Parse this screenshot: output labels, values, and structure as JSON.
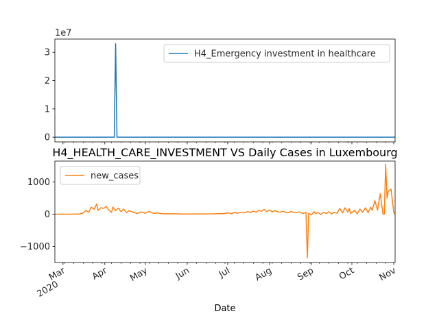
{
  "chart_data": [
    {
      "type": "line",
      "title": "",
      "xlabel": "",
      "ylabel": "",
      "offset_text": "1e7",
      "ylim": [
        -1650000,
        34650000
      ],
      "yticks": [
        {
          "value": 0,
          "label": "0"
        },
        {
          "value": 10000000,
          "label": "1"
        },
        {
          "value": 20000000,
          "label": "2"
        },
        {
          "value": 30000000,
          "label": "3"
        }
      ],
      "legend": {
        "placement": "upper right",
        "entries": [
          "H4_Emergency investment in healthcare"
        ]
      },
      "series": [
        {
          "name": "H4_Emergency investment in healthcare",
          "color": "#1f77b4",
          "points": [
            [
              "2020-02-24",
              0
            ],
            [
              "2020-04-08",
              0
            ],
            [
              "2020-04-09",
              33000000
            ],
            [
              "2020-04-10",
              0
            ],
            [
              "2020-11-02",
              0
            ]
          ]
        }
      ]
    },
    {
      "type": "line",
      "title": "H4_HEALTH_CARE_INVESTMENT VS Daily Cases in Luxembourg",
      "xlabel": "Date",
      "ylabel": "",
      "ylim": [
        -1500,
        1650
      ],
      "yticks": [
        {
          "value": -1000,
          "label": "−1000"
        },
        {
          "value": 0,
          "label": "0"
        },
        {
          "value": 1000,
          "label": "1000"
        }
      ],
      "xlim": [
        "2020-02-24",
        "2020-11-02"
      ],
      "xticks": [
        {
          "date": "2020-03-01",
          "label": "Mar",
          "sublabel": "2020"
        },
        {
          "date": "2020-04-01",
          "label": "Apr"
        },
        {
          "date": "2020-05-01",
          "label": "May"
        },
        {
          "date": "2020-06-01",
          "label": "Jun"
        },
        {
          "date": "2020-07-01",
          "label": "Jul"
        },
        {
          "date": "2020-08-01",
          "label": "Aug"
        },
        {
          "date": "2020-09-01",
          "label": "Sep"
        },
        {
          "date": "2020-10-01",
          "label": "Oct"
        },
        {
          "date": "2020-11-01",
          "label": "Nov"
        }
      ],
      "legend": {
        "placement": "upper left",
        "entries": [
          "new_cases"
        ]
      },
      "series": [
        {
          "name": "new_cases",
          "color": "#ff7f0e",
          "points": [
            [
              "2020-02-24",
              0
            ],
            [
              "2020-03-05",
              0
            ],
            [
              "2020-03-13",
              5
            ],
            [
              "2020-03-16",
              40
            ],
            [
              "2020-03-18",
              120
            ],
            [
              "2020-03-20",
              60
            ],
            [
              "2020-03-22",
              220
            ],
            [
              "2020-03-24",
              150
            ],
            [
              "2020-03-26",
              320
            ],
            [
              "2020-03-27",
              120
            ],
            [
              "2020-03-29",
              200
            ],
            [
              "2020-03-31",
              180
            ],
            [
              "2020-04-02",
              240
            ],
            [
              "2020-04-04",
              130
            ],
            [
              "2020-04-06",
              60
            ],
            [
              "2020-04-07",
              220
            ],
            [
              "2020-04-09",
              110
            ],
            [
              "2020-04-11",
              190
            ],
            [
              "2020-04-13",
              80
            ],
            [
              "2020-04-15",
              160
            ],
            [
              "2020-04-17",
              50
            ],
            [
              "2020-04-19",
              110
            ],
            [
              "2020-04-22",
              60
            ],
            [
              "2020-04-25",
              20
            ],
            [
              "2020-04-28",
              70
            ],
            [
              "2020-05-01",
              30
            ],
            [
              "2020-05-04",
              90
            ],
            [
              "2020-05-07",
              25
            ],
            [
              "2020-05-10",
              40
            ],
            [
              "2020-05-14",
              10
            ],
            [
              "2020-05-20",
              15
            ],
            [
              "2020-05-30",
              5
            ],
            [
              "2020-06-10",
              8
            ],
            [
              "2020-06-20",
              10
            ],
            [
              "2020-06-28",
              20
            ],
            [
              "2020-07-02",
              40
            ],
            [
              "2020-07-04",
              10
            ],
            [
              "2020-07-06",
              60
            ],
            [
              "2020-07-08",
              30
            ],
            [
              "2020-07-10",
              55
            ],
            [
              "2020-07-13",
              40
            ],
            [
              "2020-07-16",
              80
            ],
            [
              "2020-07-18",
              50
            ],
            [
              "2020-07-20",
              100
            ],
            [
              "2020-07-22",
              60
            ],
            [
              "2020-07-24",
              120
            ],
            [
              "2020-07-26",
              90
            ],
            [
              "2020-07-28",
              150
            ],
            [
              "2020-07-30",
              80
            ],
            [
              "2020-08-01",
              130
            ],
            [
              "2020-08-03",
              70
            ],
            [
              "2020-08-05",
              110
            ],
            [
              "2020-08-08",
              60
            ],
            [
              "2020-08-11",
              90
            ],
            [
              "2020-08-14",
              40
            ],
            [
              "2020-08-17",
              80
            ],
            [
              "2020-08-20",
              50
            ],
            [
              "2020-08-23",
              70
            ],
            [
              "2020-08-26",
              20
            ],
            [
              "2020-08-28",
              60
            ],
            [
              "2020-08-29",
              -1350
            ],
            [
              "2020-08-30",
              30
            ],
            [
              "2020-09-01",
              -20
            ],
            [
              "2020-09-03",
              80
            ],
            [
              "2020-09-04",
              20
            ],
            [
              "2020-09-06",
              50
            ],
            [
              "2020-09-08",
              -10
            ],
            [
              "2020-09-10",
              60
            ],
            [
              "2020-09-12",
              20
            ],
            [
              "2020-09-14",
              80
            ],
            [
              "2020-09-16",
              10
            ],
            [
              "2020-09-18",
              60
            ],
            [
              "2020-09-20",
              30
            ],
            [
              "2020-09-22",
              180
            ],
            [
              "2020-09-24",
              40
            ],
            [
              "2020-09-26",
              200
            ],
            [
              "2020-09-28",
              60
            ],
            [
              "2020-09-29",
              180
            ],
            [
              "2020-09-30",
              20
            ],
            [
              "2020-10-03",
              120
            ],
            [
              "2020-10-05",
              10
            ],
            [
              "2020-10-07",
              160
            ],
            [
              "2020-10-09",
              60
            ],
            [
              "2020-10-11",
              200
            ],
            [
              "2020-10-13",
              50
            ],
            [
              "2020-10-15",
              220
            ],
            [
              "2020-10-16",
              120
            ],
            [
              "2020-10-18",
              420
            ],
            [
              "2020-10-20",
              130
            ],
            [
              "2020-10-22",
              640
            ],
            [
              "2020-10-24",
              5
            ],
            [
              "2020-10-25",
              0
            ],
            [
              "2020-10-26",
              1550
            ],
            [
              "2020-10-27",
              500
            ],
            [
              "2020-10-28",
              720
            ],
            [
              "2020-10-30",
              780
            ],
            [
              "2020-11-01",
              60
            ],
            [
              "2020-11-02",
              0
            ]
          ]
        }
      ]
    }
  ]
}
